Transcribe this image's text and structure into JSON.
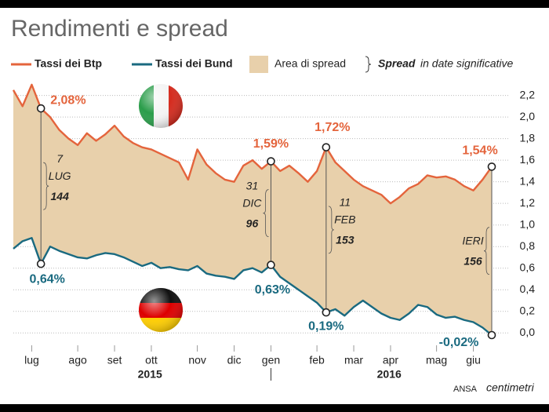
{
  "chart_data": {
    "type": "spread",
    "title": "Rendimenti e spread",
    "legend": {
      "area": "Area di spread",
      "note_bold": "Spread",
      "note": "in date significative"
    },
    "categories": [
      null,
      null,
      "lug",
      null,
      null,
      null,
      null,
      "ago",
      null,
      null,
      null,
      "set",
      null,
      null,
      null,
      "ott",
      null,
      null,
      null,
      null,
      "nov",
      null,
      null,
      null,
      "dic",
      null,
      null,
      null,
      "gen",
      null,
      null,
      null,
      null,
      "feb",
      null,
      null,
      null,
      "mar",
      null,
      null,
      null,
      "apr",
      null,
      null,
      null,
      null,
      "mag",
      null,
      null,
      null,
      "giu",
      null,
      null
    ],
    "years": [
      "2015",
      "2016"
    ],
    "series": [
      {
        "name": "Tassi dei Btp",
        "color": "#e4643c",
        "values": [
          2.25,
          2.1,
          2.3,
          2.08,
          2.0,
          1.88,
          1.8,
          1.74,
          1.85,
          1.78,
          1.84,
          1.92,
          1.82,
          1.76,
          1.72,
          1.7,
          1.66,
          1.62,
          1.58,
          1.42,
          1.7,
          1.56,
          1.48,
          1.42,
          1.4,
          1.55,
          1.6,
          1.52,
          1.59,
          1.5,
          1.55,
          1.48,
          1.4,
          1.5,
          1.72,
          1.58,
          1.5,
          1.42,
          1.36,
          1.32,
          1.28,
          1.2,
          1.26,
          1.34,
          1.38,
          1.46,
          1.44,
          1.45,
          1.42,
          1.36,
          1.32,
          1.42,
          1.54
        ],
        "value_labels": [
          null,
          null,
          null,
          "2,08%",
          null,
          null,
          null,
          null,
          null,
          null,
          null,
          null,
          null,
          null,
          null,
          null,
          null,
          null,
          null,
          null,
          null,
          null,
          null,
          null,
          null,
          null,
          null,
          null,
          "1,59%",
          null,
          null,
          null,
          null,
          null,
          "1,72%",
          null,
          null,
          null,
          null,
          null,
          null,
          null,
          null,
          null,
          null,
          null,
          null,
          null,
          null,
          null,
          null,
          null,
          "1,54%"
        ]
      },
      {
        "name": "Tassi dei Bund",
        "color": "#1a6a80",
        "values": [
          0.78,
          0.85,
          0.88,
          0.64,
          0.8,
          0.76,
          0.73,
          0.7,
          0.69,
          0.72,
          0.74,
          0.73,
          0.7,
          0.66,
          0.62,
          0.65,
          0.6,
          0.61,
          0.59,
          0.58,
          0.62,
          0.55,
          0.53,
          0.52,
          0.5,
          0.58,
          0.6,
          0.56,
          0.63,
          0.52,
          0.46,
          0.4,
          0.34,
          0.28,
          0.19,
          0.22,
          0.16,
          0.24,
          0.3,
          0.24,
          0.18,
          0.14,
          0.12,
          0.18,
          0.26,
          0.24,
          0.17,
          0.14,
          0.15,
          0.12,
          0.1,
          0.05,
          -0.02
        ],
        "value_labels": [
          null,
          null,
          null,
          "0,64%",
          null,
          null,
          null,
          null,
          null,
          null,
          null,
          null,
          null,
          null,
          null,
          null,
          null,
          null,
          null,
          null,
          null,
          null,
          null,
          null,
          null,
          null,
          null,
          null,
          "0,63%",
          null,
          null,
          null,
          null,
          null,
          "0,19%",
          null,
          null,
          null,
          null,
          null,
          null,
          null,
          null,
          null,
          null,
          null,
          null,
          null,
          null,
          null,
          null,
          null,
          "-0,02%"
        ]
      }
    ],
    "area_color": "#e8d0ab",
    "annotations": [
      {
        "day": "7",
        "month": "LUG",
        "spread": 144
      },
      {
        "day": "31",
        "month": "DIC",
        "spread": 96
      },
      {
        "day": "11",
        "month": "FEB",
        "spread": 153
      },
      {
        "label": "IERI",
        "spread": 156
      }
    ],
    "ylim": [
      -0.1,
      2.35
    ],
    "yticks": [
      {
        "value": 0,
        "label": "0,0"
      },
      {
        "value": 0.2,
        "label": "0,2"
      },
      {
        "value": 0.4,
        "label": "0,4"
      },
      {
        "value": 0.6,
        "label": "0,6"
      },
      {
        "value": 0.8,
        "label": "0,8"
      },
      {
        "value": 1.0,
        "label": "1,0"
      },
      {
        "value": 1.2,
        "label": "1,2"
      },
      {
        "value": 1.4,
        "label": "1,4"
      },
      {
        "value": 1.6,
        "label": "1,6"
      },
      {
        "value": 1.8,
        "label": "1,8"
      },
      {
        "value": 2.0,
        "label": "2,0"
      },
      {
        "value": 2.2,
        "label": "2,2"
      }
    ],
    "grid": true,
    "source": "ANSA",
    "brand": "centimetri"
  }
}
